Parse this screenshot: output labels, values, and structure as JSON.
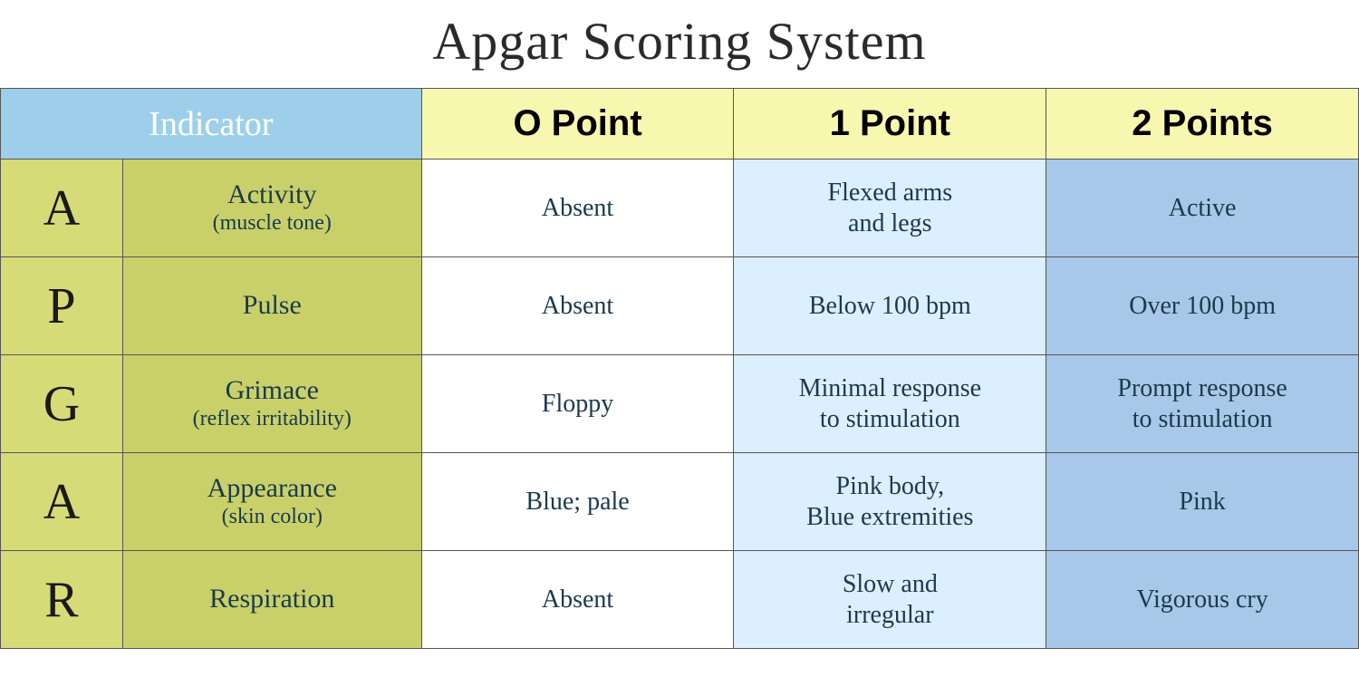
{
  "title": "Apgar Scoring System",
  "colors": {
    "header_indicator_bg": "#9ecfea",
    "header_score_bg": "#f7f7b0",
    "letter_bg": "#d6db77",
    "indicator_bg": "#c9d06a",
    "score0_bg": "#ffffff",
    "score1_bg": "#dcefff",
    "score2_bg": "#a7c8e8"
  },
  "headers": {
    "indicator": "Indicator",
    "score0": "O Point",
    "score1": "1 Point",
    "score2": "2 Points"
  },
  "rows": [
    {
      "letter": "A",
      "name": "Activity",
      "sub": "(muscle tone)",
      "score0": "Absent",
      "score1": "Flexed arms\nand legs",
      "score2": "Active"
    },
    {
      "letter": "P",
      "name": "Pulse",
      "sub": "",
      "score0": "Absent",
      "score1": "Below 100 bpm",
      "score2": "Over 100 bpm"
    },
    {
      "letter": "G",
      "name": "Grimace",
      "sub": "(reflex irritability)",
      "score0": "Floppy",
      "score1": "Minimal response\nto stimulation",
      "score2": "Prompt response\nto stimulation"
    },
    {
      "letter": "A",
      "name": "Appearance",
      "sub": "(skin color)",
      "score0": "Blue; pale",
      "score1": "Pink body,\nBlue extremities",
      "score2": "Pink"
    },
    {
      "letter": "R",
      "name": "Respiration",
      "sub": "",
      "score0": "Absent",
      "score1": "Slow and\nirregular",
      "score2": "Vigorous cry"
    }
  ]
}
